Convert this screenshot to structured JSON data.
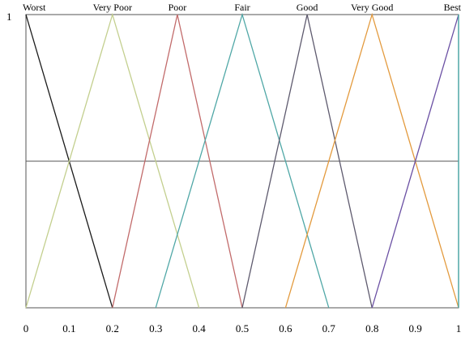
{
  "chart_data": {
    "type": "line",
    "xlim": [
      0,
      1
    ],
    "ylim": [
      0,
      1
    ],
    "x_ticks": [
      "0",
      "0.1",
      "0.2",
      "0.3",
      "0.4",
      "0.5",
      "0.6",
      "0.7",
      "0.8",
      "0.9",
      "1"
    ],
    "y_tick_label": "1",
    "reference_line_y": 0.5,
    "series": [
      {
        "name": "Worst",
        "color": "#1a1a1a",
        "points": [
          [
            0,
            1
          ],
          [
            0,
            1
          ],
          [
            0.2,
            0
          ]
        ]
      },
      {
        "name": "Very Poor",
        "color": "#c3cf8e",
        "points": [
          [
            0,
            0
          ],
          [
            0.2,
            1
          ],
          [
            0.4,
            0
          ]
        ]
      },
      {
        "name": "Poor",
        "color": "#c26b6b",
        "points": [
          [
            0.2,
            0
          ],
          [
            0.35,
            1
          ],
          [
            0.5,
            0
          ]
        ]
      },
      {
        "name": "Fair",
        "color": "#4fa7a6",
        "points": [
          [
            0.3,
            0
          ],
          [
            0.5,
            1
          ],
          [
            0.7,
            0
          ]
        ]
      },
      {
        "name": "Good",
        "color": "#5e5a6e",
        "points": [
          [
            0.5,
            0
          ],
          [
            0.65,
            1
          ],
          [
            0.8,
            0
          ]
        ]
      },
      {
        "name": "Very Good",
        "color": "#e39a3d",
        "points": [
          [
            0.6,
            0
          ],
          [
            0.8,
            1
          ],
          [
            1,
            0
          ]
        ]
      },
      {
        "name": "Best",
        "color": "#6a4fa3",
        "points": [
          [
            0.8,
            0
          ],
          [
            1,
            1
          ],
          [
            1,
            1
          ]
        ]
      }
    ],
    "extra_lines": [
      {
        "color": "#4fa7a6",
        "points": [
          [
            1,
            1
          ],
          [
            1,
            0
          ]
        ]
      }
    ]
  }
}
